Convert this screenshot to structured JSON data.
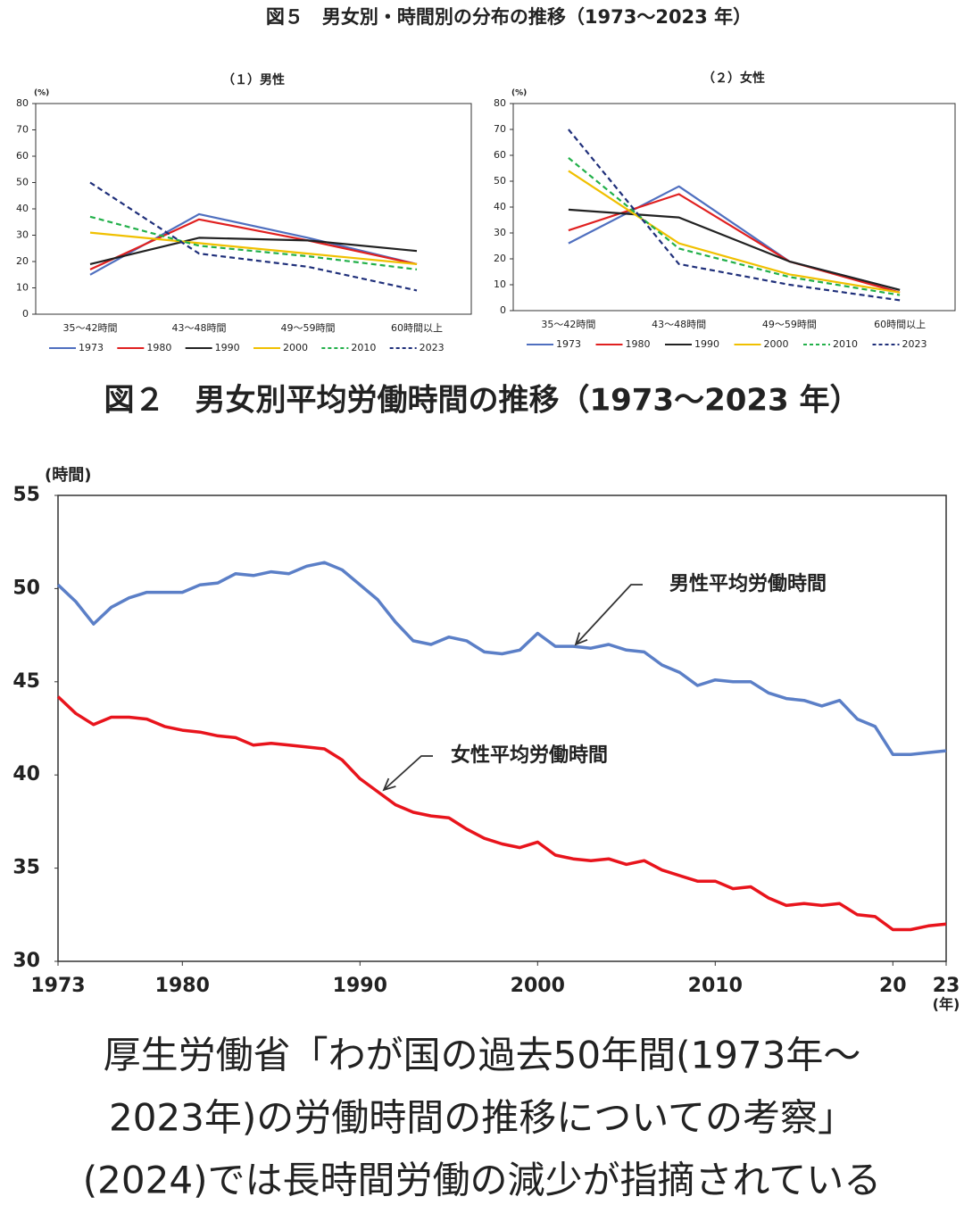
{
  "figure5": {
    "title": "図５　男女別・時間別の分布の推移（1973～2023 年）"
  },
  "chart_data": [
    {
      "type": "line",
      "title": "（１）男性",
      "y_label": "(%)",
      "categories": [
        "35～42時間",
        "43～48時間",
        "49～59時間",
        "60時間以上"
      ],
      "ylim": [
        0,
        80
      ],
      "yticks": [
        0,
        10,
        20,
        30,
        40,
        50,
        60,
        70,
        80
      ],
      "series": [
        {
          "name": "1973",
          "color": "#4f6fbf",
          "values": [
            15,
            38,
            29,
            19
          ]
        },
        {
          "name": "1980",
          "color": "#e02020",
          "values": [
            17,
            36,
            28,
            19
          ]
        },
        {
          "name": "1990",
          "color": "#222222",
          "values": [
            19,
            29,
            28,
            24
          ]
        },
        {
          "name": "2000",
          "color": "#f0c000",
          "values": [
            31,
            27,
            23,
            19
          ]
        },
        {
          "name": "2010",
          "color": "#22b04a",
          "dashed": true,
          "values": [
            37,
            26,
            22,
            17
          ]
        },
        {
          "name": "2023",
          "color": "#1f2f7a",
          "dashed": true,
          "values": [
            50,
            23,
            18,
            9
          ]
        }
      ]
    },
    {
      "type": "line",
      "title": "（２）女性",
      "y_label": "(%)",
      "categories": [
        "35～42時間",
        "43～48時間",
        "49～59時間",
        "60時間以上"
      ],
      "ylim": [
        0,
        80
      ],
      "yticks": [
        0,
        10,
        20,
        30,
        40,
        50,
        60,
        70,
        80
      ],
      "series": [
        {
          "name": "1973",
          "color": "#4f6fbf",
          "values": [
            26,
            48,
            19,
            8
          ]
        },
        {
          "name": "1980",
          "color": "#e02020",
          "values": [
            31,
            45,
            19,
            7
          ]
        },
        {
          "name": "1990",
          "color": "#222222",
          "values": [
            39,
            36,
            19,
            8
          ]
        },
        {
          "name": "2000",
          "color": "#f0c000",
          "values": [
            54,
            26,
            14,
            7
          ]
        },
        {
          "name": "2010",
          "color": "#22b04a",
          "dashed": true,
          "values": [
            59,
            24,
            13,
            6
          ]
        },
        {
          "name": "2023",
          "color": "#1f2f7a",
          "dashed": true,
          "values": [
            70,
            18,
            10,
            4
          ]
        }
      ]
    },
    {
      "type": "line",
      "title": "図２　男女別平均労働時間の推移（1973～2023 年）",
      "y_label": "(時間)",
      "x_label": "(年)",
      "x": [
        1973,
        1974,
        1975,
        1976,
        1977,
        1978,
        1979,
        1980,
        1981,
        1982,
        1983,
        1984,
        1985,
        1986,
        1987,
        1988,
        1989,
        1990,
        1991,
        1992,
        1993,
        1994,
        1995,
        1996,
        1997,
        1998,
        1999,
        2000,
        2001,
        2002,
        2003,
        2004,
        2005,
        2006,
        2007,
        2008,
        2009,
        2010,
        2011,
        2012,
        2013,
        2014,
        2015,
        2016,
        2017,
        2018,
        2019,
        2020,
        2021,
        2022,
        2023
      ],
      "xlim": [
        1973,
        2023
      ],
      "xticks": [
        1973,
        1980,
        1990,
        2000,
        2010,
        {
          "value": 2020,
          "label": "20"
        },
        {
          "value": 2023,
          "label": "23"
        }
      ],
      "ylim": [
        30,
        55
      ],
      "yticks": [
        30,
        35,
        40,
        45,
        50,
        55
      ],
      "series": [
        {
          "name": "男性平均労働時間",
          "color": "#5b7fc7",
          "values": [
            50.2,
            49.3,
            48.1,
            49.0,
            49.5,
            49.8,
            49.8,
            49.8,
            50.2,
            50.3,
            50.8,
            50.7,
            50.9,
            50.8,
            51.2,
            51.4,
            51.0,
            50.2,
            49.4,
            48.2,
            47.2,
            47.0,
            47.4,
            47.2,
            46.6,
            46.5,
            46.7,
            47.6,
            46.9,
            46.9,
            46.8,
            47.0,
            46.7,
            46.6,
            45.9,
            45.5,
            44.8,
            45.1,
            45.0,
            45.0,
            44.4,
            44.1,
            44.0,
            43.7,
            44.0,
            43.0,
            42.6,
            41.1,
            41.1,
            41.2,
            41.3
          ]
        },
        {
          "name": "女性平均労働時間",
          "color": "#e8141c",
          "values": [
            44.2,
            43.3,
            42.7,
            43.1,
            43.1,
            43.0,
            42.6,
            42.4,
            42.3,
            42.1,
            42.0,
            41.6,
            41.7,
            41.6,
            41.5,
            41.4,
            40.8,
            39.8,
            39.1,
            38.4,
            38.0,
            37.8,
            37.7,
            37.1,
            36.6,
            36.3,
            36.1,
            36.4,
            35.7,
            35.5,
            35.4,
            35.5,
            35.2,
            35.4,
            34.9,
            34.6,
            34.3,
            34.3,
            33.9,
            34.0,
            33.4,
            33.0,
            33.1,
            33.0,
            33.1,
            32.5,
            32.4,
            31.7,
            31.7,
            31.9,
            32.0
          ]
        }
      ]
    }
  ],
  "caption": [
    "厚生労働省「わが国の過去50年間(1973年～",
    "2023年)の労働時間の推移についての考察」",
    "(2024)では長時間労働の減少が指摘されている"
  ]
}
